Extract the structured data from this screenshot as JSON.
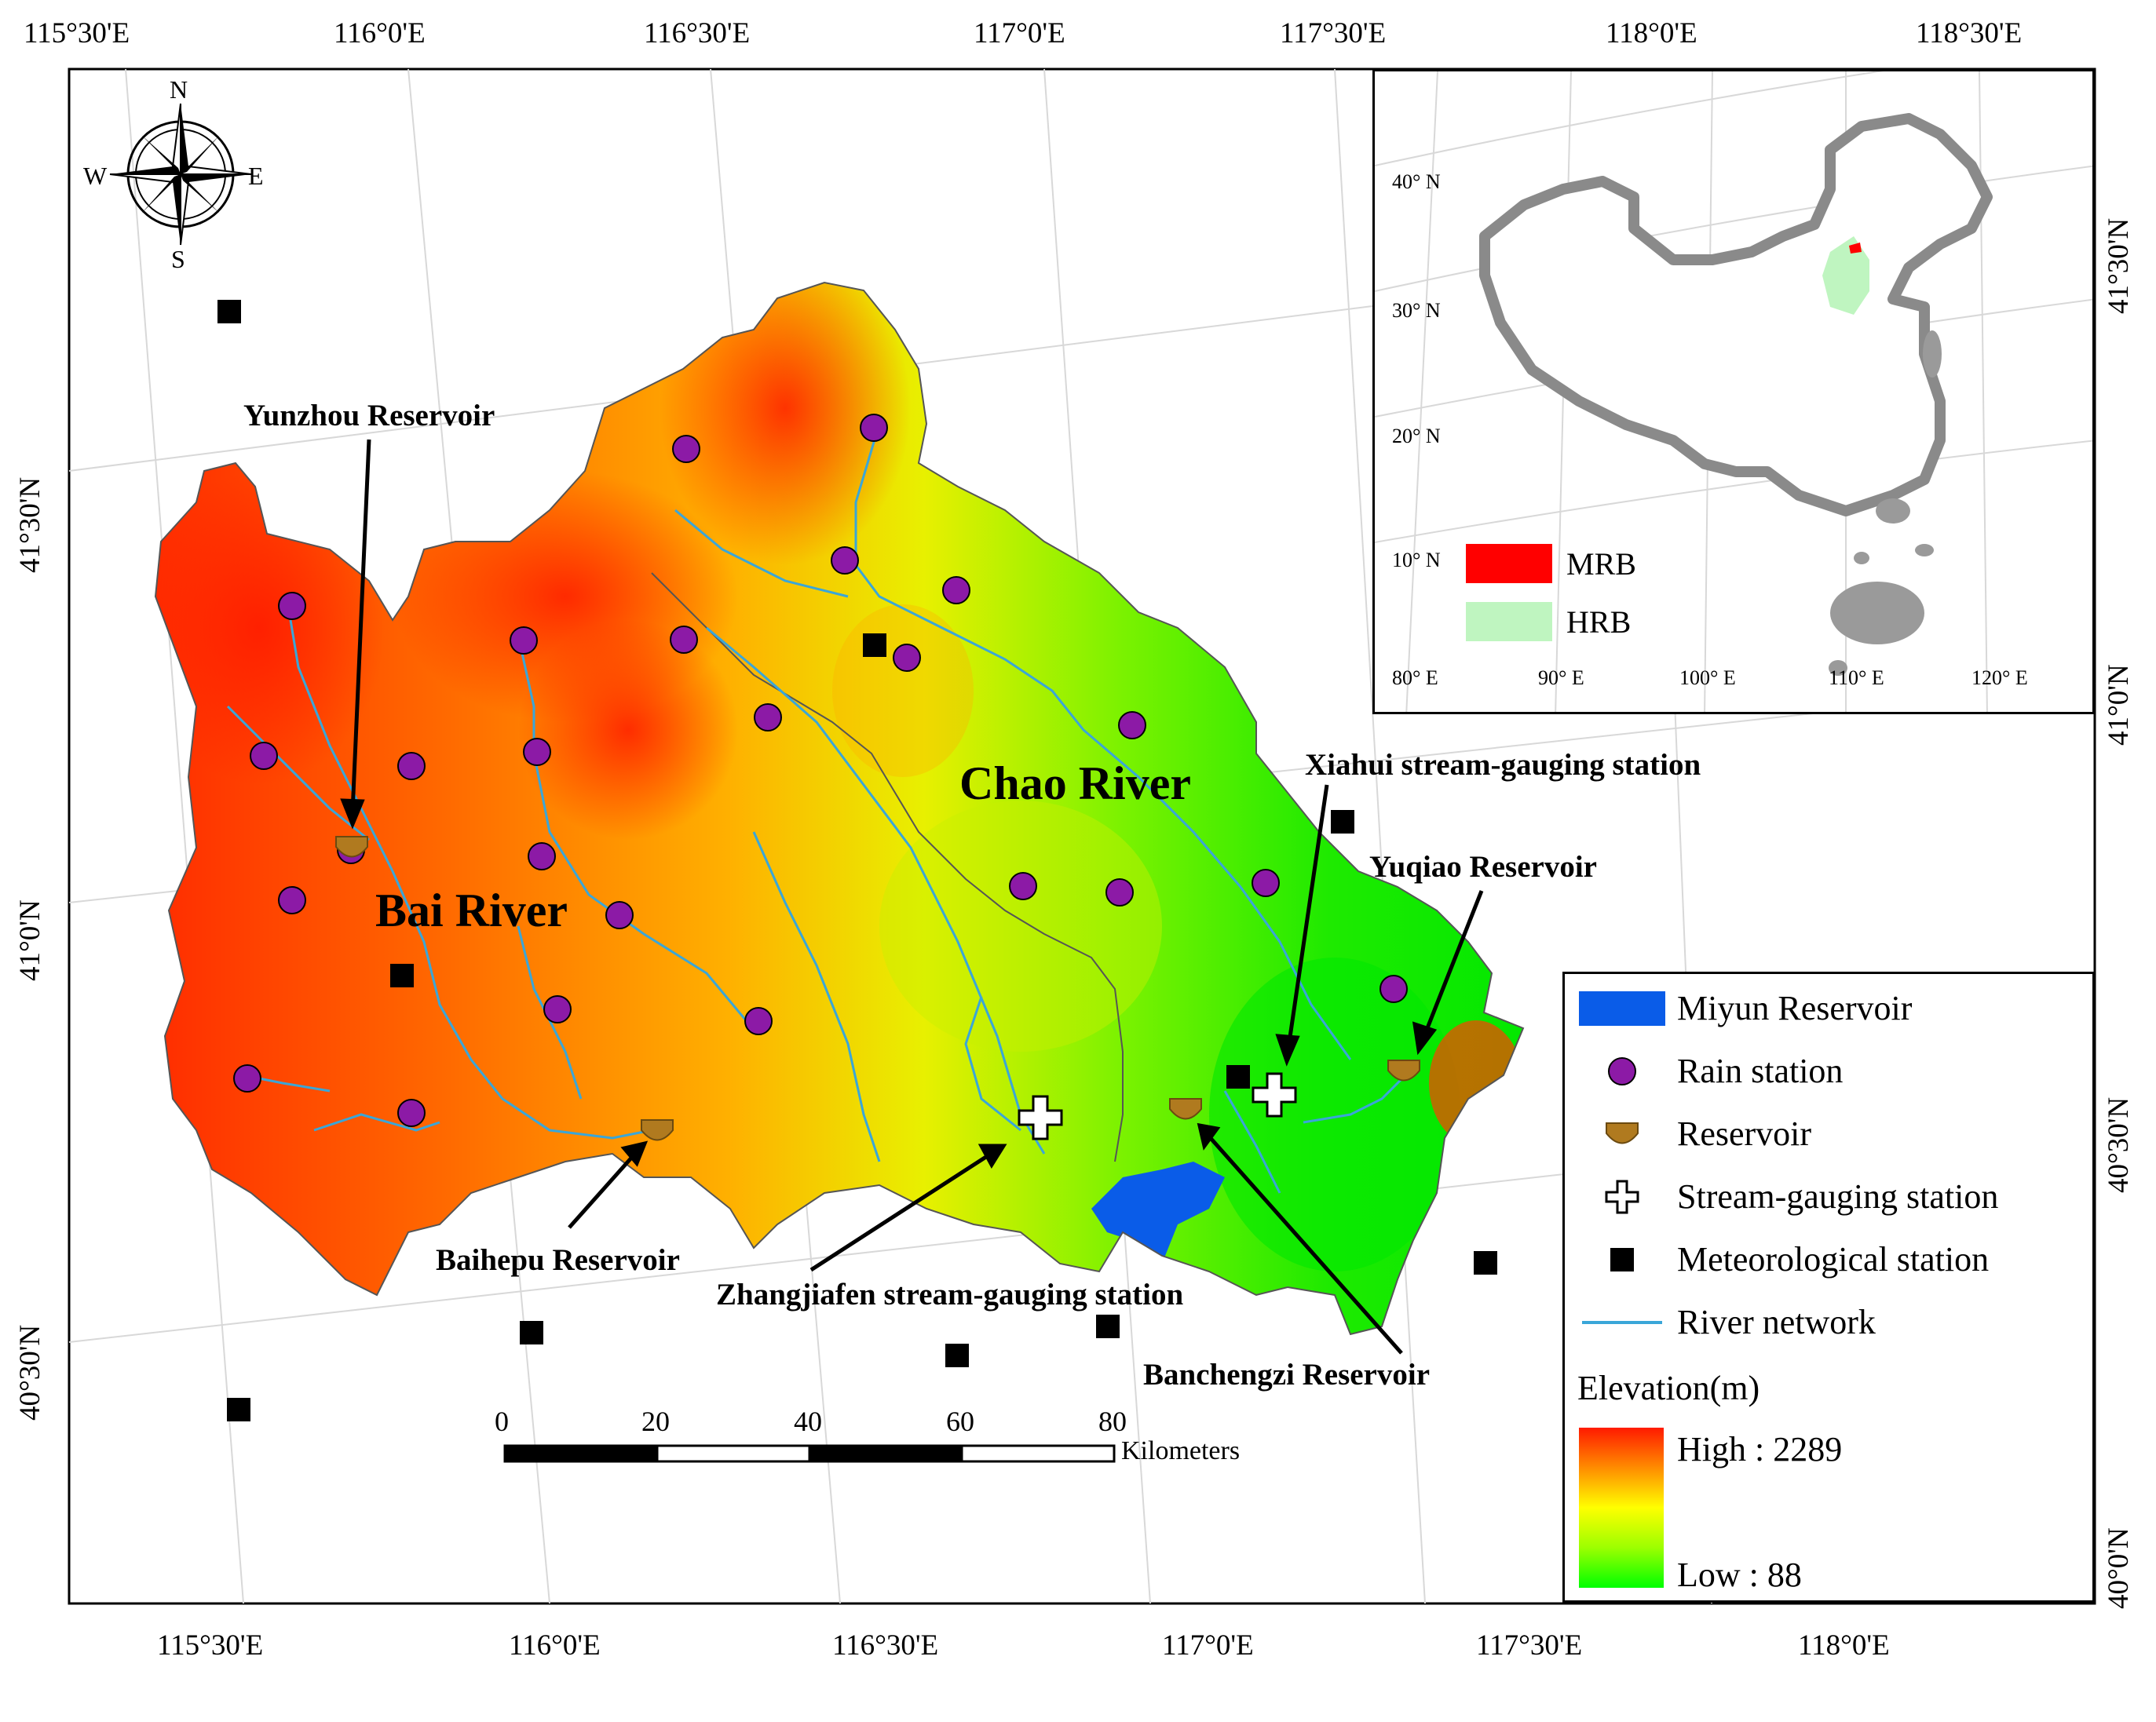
{
  "colors": {
    "elev_high": "#ff1a00",
    "elev_mid": "#ffff00",
    "elev_low": "#00ff00",
    "reservoir_water": "#0a5ce8",
    "rain_station": "#8c1aa6",
    "reservoir_symbol": "#b07a1f",
    "river": "#3aa6d8",
    "mrb": "#ff0000",
    "hrb": "#bff5c0"
  },
  "graticule": {
    "top": [
      "115°30'E",
      "116°0'E",
      "116°30'E",
      "117°0'E",
      "117°30'E",
      "118°0'E",
      "118°30'E"
    ],
    "bottom": [
      "115°30'E",
      "116°0'E",
      "116°30'E",
      "117°0'E",
      "117°30'E",
      "118°0'E"
    ],
    "left": [
      "41°30'N",
      "41°0'N",
      "40°30'N"
    ],
    "right": [
      "41°30'N",
      "41°0'N",
      "40°30'N",
      "40°0'N"
    ]
  },
  "compass": {
    "n": "N",
    "s": "S",
    "e": "E",
    "w": "W"
  },
  "rivers": {
    "bai": "Bai River",
    "chao": "Chao River"
  },
  "annotations": {
    "yunzhou": "Yunzhou Reservoir",
    "xiahui": "Xiahui stream-gauging station",
    "yuqiao": "Yuqiao Reservoir",
    "baihepu": "Baihepu Reservoir",
    "zhangjiafen": "Zhangjiafen stream-gauging station",
    "banchengzi": "Banchengzi Reservoir"
  },
  "scale_bar": {
    "ticks": [
      "0",
      "20",
      "40",
      "60",
      "80"
    ],
    "unit": "Kilometers"
  },
  "inset": {
    "lat_labels": [
      "40° N",
      "30° N",
      "20° N",
      "10° N"
    ],
    "lon_labels": [
      "80° E",
      "90° E",
      "100° E",
      "110° E",
      "120° E"
    ],
    "legend": [
      {
        "label": "MRB",
        "color": "#ff0000"
      },
      {
        "label": "HRB",
        "color": "#bff5c0"
      }
    ]
  },
  "legend": {
    "items": [
      {
        "label": "Miyun Reservoir",
        "icon": "water-body-icon"
      },
      {
        "label": "Rain station",
        "icon": "purple-circle-icon"
      },
      {
        "label": "Reservoir",
        "icon": "reservoir-icon"
      },
      {
        "label": "Stream-gauging station",
        "icon": "cross-icon"
      },
      {
        "label": "Meteorological station",
        "icon": "black-square-icon"
      },
      {
        "label": "River network",
        "icon": "river-line-icon"
      }
    ],
    "elevation_title": "Elevation(m)",
    "elevation_high": "High : 2289",
    "elevation_low": "Low : 88"
  }
}
